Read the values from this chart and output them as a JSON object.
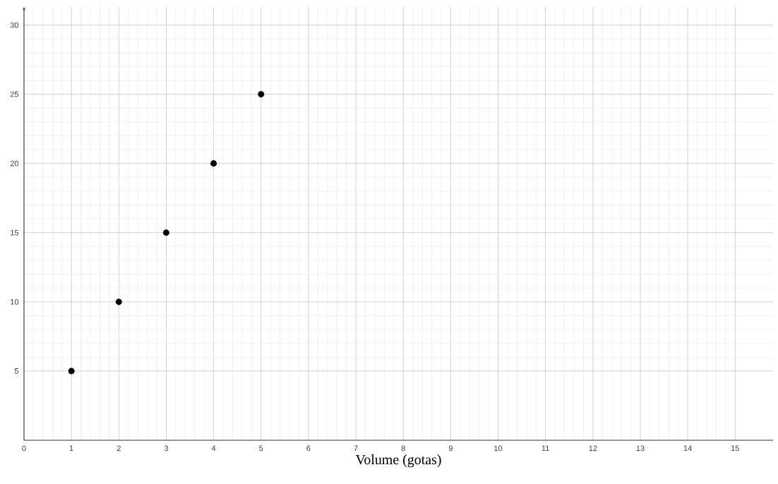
{
  "chart_data": {
    "type": "scatter",
    "xlabel": "Volume (gotas)",
    "series": [
      {
        "color": "#000000",
        "x": [
          1,
          2,
          3,
          4,
          5
        ],
        "values": [
          5,
          10,
          15,
          20,
          25
        ]
      }
    ],
    "xlim": [
      0,
      15.8
    ],
    "ylim": [
      0,
      31.3
    ],
    "xticks": [
      0,
      1,
      2,
      3,
      4,
      5,
      6,
      7,
      8,
      9,
      10,
      11,
      12,
      13,
      14,
      15
    ],
    "yticks": [
      5,
      10,
      15,
      20,
      25,
      30
    ],
    "grid": true,
    "marker": "circle"
  }
}
